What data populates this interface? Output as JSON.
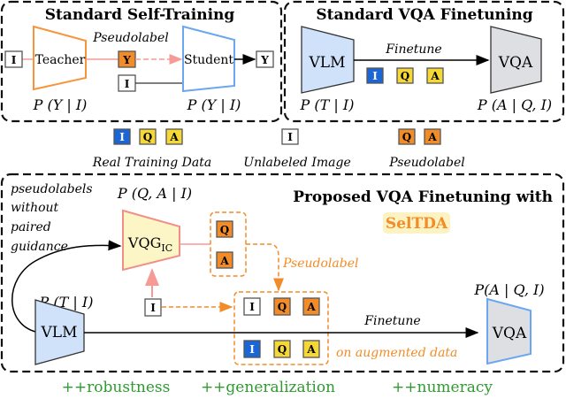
{
  "panels": {
    "self_training": {
      "title": "Standard Self-Training",
      "teacher": "Teacher",
      "student": "Student",
      "pseudolabel": "Pseudolabel",
      "teacher_prob": "P (Y | I)",
      "student_prob": "P (Y | I)"
    },
    "vqa_finetuning": {
      "title": "Standard VQA Finetuning",
      "vlm": "VLM",
      "vqa": "VQA",
      "finetune": "Finetune",
      "vlm_prob": "P (T | I)",
      "vqa_prob": "P (A | Q, I)"
    },
    "proposed": {
      "title": "Proposed VQA Finetuning with",
      "method": "SelTDA",
      "note_lines": [
        "pseudolabels",
        "without",
        "paired",
        "guidance"
      ],
      "vqg_prob": "P (Q, A | I)",
      "vqg": "VQG",
      "vqg_sub": "IC",
      "pseudolabel": "Pseudolabel",
      "vlm_prob": "P (T | I)",
      "vlm": "VLM",
      "finetune": "Finetune",
      "augmented": "on augmented data",
      "vqa_prob": "P(A | Q, I)",
      "vqa": "VQA"
    }
  },
  "tokens": {
    "image": "I",
    "question": "Q",
    "answer": "A",
    "label": "Y"
  },
  "legend": {
    "real": "Real Training Data",
    "unlabeled": "Unlabeled Image",
    "pseudolabel": "Pseudolabel"
  },
  "benefits": [
    "++robustness",
    "++generalization",
    "++numeracy"
  ],
  "colors": {
    "real_image": "#1a66d6",
    "real_qa": "#f5d835",
    "pseudo": "#f28c28",
    "teacher": "#f7953b",
    "student": "#6aa7f0",
    "vlm_fill": "#cfe2fa",
    "vqa_fill": "#dedfe2",
    "vqg_fill": "#fcf6c6",
    "benefit": "#2f9a2f"
  }
}
